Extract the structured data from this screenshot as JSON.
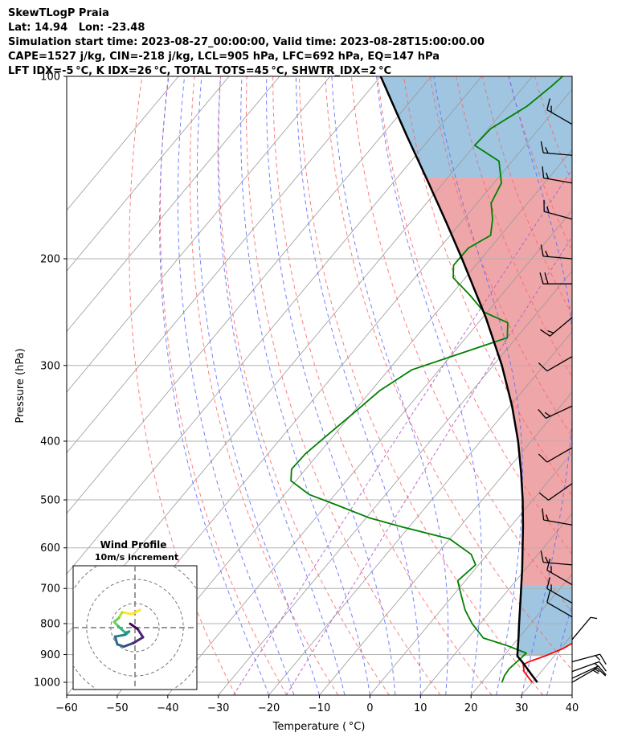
{
  "header": {
    "lines": [
      "SkewTLogP Praia",
      "Lat: 14.94   Lon: -23.48",
      "Simulation start time: 2023-08-27_00:00:00, Valid time: 2023-08-28T15:00:00.00",
      "CAPE=1527 j/kg, CIN=-218 j/kg, LCL=905 hPa, LFC=692 hPa, EQ=147 hPa",
      "LFT IDX=-5 °C, K IDX=26 °C, TOTAL TOTS=45 °C, SHWTR_IDX=2 °C"
    ]
  },
  "colors": {
    "temperature": "#ff0000",
    "dewpoint": "#008000",
    "parcel": "#000000",
    "cape_fill": "#e8888c",
    "cin_fill": "#7fb2d6",
    "dry_adiabat": "#ff6666",
    "moist_adiabat": "#5a6bff",
    "mixing_ratio": "#b35cc9",
    "isotherm": "#999999"
  },
  "chart_data": [
    {
      "type": "line",
      "subtype": "skew-t log-p",
      "xlabel": "Temperature ( °C)",
      "ylabel": "Pressure (hPa)",
      "xlim": [
        -60,
        40
      ],
      "ylim": [
        1050,
        100
      ],
      "y_scale": "log",
      "x_ticks": [
        -60,
        -50,
        -40,
        -30,
        -20,
        -10,
        0,
        10,
        20,
        30,
        40
      ],
      "x_tick_labels": [
        "−60",
        "−50",
        "−40",
        "−30",
        "−20",
        "−10",
        "0",
        "10",
        "20",
        "30",
        "40"
      ],
      "y_ticks": [
        1000,
        900,
        800,
        700,
        600,
        500,
        400,
        300,
        200,
        100
      ],
      "y_tick_labels": [
        "1000",
        "900",
        "800",
        "700",
        "600",
        "500",
        "400",
        "300",
        "200",
        "100"
      ],
      "grid": true,
      "skew_deg_per_decade": 100,
      "series": [
        {
          "key": "temperature",
          "points": [
            [
              1000,
              30.0
            ],
            [
              980,
              28.3
            ],
            [
              960,
              26.6
            ],
            [
              935,
              25.3
            ],
            [
              925,
              25.9
            ],
            [
              905,
              28.2
            ],
            [
              880,
              30.5
            ],
            [
              845,
              32.4
            ],
            [
              820,
              32.1
            ],
            [
              790,
              30.6
            ],
            [
              740,
              28.0
            ],
            [
              700,
              25.2
            ],
            [
              660,
              22.4
            ],
            [
              620,
              19.5
            ],
            [
              590,
              17.1
            ],
            [
              555,
              16.1
            ],
            [
              520,
              15.5
            ],
            [
              480,
              14.4
            ],
            [
              450,
              13.4
            ],
            [
              410,
              11.0
            ],
            [
              370,
              8.0
            ],
            [
              330,
              3.9
            ],
            [
              300,
              0.4
            ],
            [
              275,
              -2.2
            ],
            [
              255,
              -4.5
            ],
            [
              240,
              -6.8
            ],
            [
              220,
              -10.0
            ],
            [
              205,
              -13.0
            ],
            [
              190,
              -16.8
            ],
            [
              175,
              -22.0
            ],
            [
              160,
              -27.3
            ],
            [
              150,
              -31.0
            ],
            [
              138,
              -31.5
            ],
            [
              125,
              -35.8
            ],
            [
              112,
              -40.5
            ],
            [
              100,
              -44.5
            ]
          ]
        },
        {
          "key": "dewpoint",
          "points": [
            [
              1000,
              24.0
            ],
            [
              975,
              23.4
            ],
            [
              950,
              23.2
            ],
            [
              930,
              23.5
            ],
            [
              910,
              23.8
            ],
            [
              895,
              24.0
            ],
            [
              870,
              19.0
            ],
            [
              845,
              13.0
            ],
            [
              800,
              8.4
            ],
            [
              760,
              4.8
            ],
            [
              720,
              1.7
            ],
            [
              680,
              -1.5
            ],
            [
              640,
              -0.6
            ],
            [
              615,
              -3.2
            ],
            [
              580,
              -10.0
            ],
            [
              555,
              -21.0
            ],
            [
              535,
              -29.5
            ],
            [
              510,
              -37.9
            ],
            [
              490,
              -45.1
            ],
            [
              465,
              -51.0
            ],
            [
              445,
              -52.8
            ],
            [
              420,
              -52.6
            ],
            [
              390,
              -51.3
            ],
            [
              360,
              -49.8
            ],
            [
              330,
              -48.3
            ],
            [
              305,
              -45.4
            ],
            [
              288,
              -39.0
            ],
            [
              270,
              -31.8
            ],
            [
              255,
              -34.2
            ],
            [
              245,
              -40.6
            ],
            [
              230,
              -46.1
            ],
            [
              215,
              -52.4
            ],
            [
              205,
              -54.4
            ],
            [
              192,
              -54.3
            ],
            [
              183,
              -52.0
            ],
            [
              172,
              -54.3
            ],
            [
              162,
              -57.2
            ],
            [
              150,
              -58.5
            ],
            [
              138,
              -62.6
            ],
            [
              130,
              -70.0
            ],
            [
              122,
              -69.6
            ],
            [
              112,
              -66.1
            ],
            [
              104,
              -64.6
            ],
            [
              100,
              -64.0
            ]
          ]
        },
        {
          "key": "parcel",
          "points": [
            [
              1000,
              31.0
            ],
            [
              975,
              28.9
            ],
            [
              950,
              26.8
            ],
            [
              925,
              24.6
            ],
            [
              905,
              22.7
            ],
            [
              850,
              20.2
            ],
            [
              800,
              17.7
            ],
            [
              750,
              15.1
            ],
            [
              700,
              12.3
            ],
            [
              650,
              9.3
            ],
            [
              600,
              5.9
            ],
            [
              550,
              2.2
            ],
            [
              500,
              -2.0
            ],
            [
              450,
              -6.9
            ],
            [
              400,
              -12.6
            ],
            [
              350,
              -19.6
            ],
            [
              300,
              -28.3
            ],
            [
              250,
              -39.4
            ],
            [
              200,
              -53.8
            ],
            [
              175,
              -62.6
            ],
            [
              150,
              -72.9
            ],
            [
              125,
              -85.2
            ],
            [
              100,
              -100.0
            ]
          ]
        }
      ],
      "fills": [
        {
          "key": "cape",
          "p_bottom": 692,
          "p_top": 147
        },
        {
          "key": "cin",
          "p_bottom": 905,
          "p_top": 692
        },
        {
          "key": "cin",
          "p_bottom": 147,
          "p_top": 100
        }
      ],
      "background_lines": {
        "isotherms_c": [
          -140,
          -130,
          -120,
          -110,
          -100,
          -90,
          -80,
          -70,
          -60,
          -50,
          -40,
          -30,
          -20,
          -10,
          0,
          10,
          20,
          30,
          40
        ],
        "dry_adiabats_c": [
          -30,
          -20,
          -10,
          0,
          10,
          20,
          30,
          40,
          50,
          60,
          70,
          80,
          90,
          100,
          110,
          120
        ],
        "moist_adiabats_c": [
          -20,
          -15,
          -10,
          -5,
          0,
          5,
          10,
          15,
          20,
          25,
          30,
          35
        ],
        "mixing_ratio_gkg": [
          0.4,
          1
        ]
      },
      "wind_barbs": [
        {
          "p": 1000,
          "speed_kt": 15,
          "dir": 60
        },
        {
          "p": 985,
          "speed_kt": 15,
          "dir": 65
        },
        {
          "p": 960,
          "speed_kt": 15,
          "dir": 70
        },
        {
          "p": 925,
          "speed_kt": 15,
          "dir": 75
        },
        {
          "p": 850,
          "speed_kt": 5,
          "dir": 40
        },
        {
          "p": 780,
          "speed_kt": 10,
          "dir": 300
        },
        {
          "p": 740,
          "speed_kt": 15,
          "dir": 300
        },
        {
          "p": 690,
          "speed_kt": 15,
          "dir": 300
        },
        {
          "p": 640,
          "speed_kt": 15,
          "dir": 275
        },
        {
          "p": 550,
          "speed_kt": 15,
          "dir": 280
        },
        {
          "p": 470,
          "speed_kt": 10,
          "dir": 235
        },
        {
          "p": 410,
          "speed_kt": 10,
          "dir": 240
        },
        {
          "p": 350,
          "speed_kt": 15,
          "dir": 245
        },
        {
          "p": 290,
          "speed_kt": 10,
          "dir": 240
        },
        {
          "p": 250,
          "speed_kt": 15,
          "dir": 230
        },
        {
          "p": 220,
          "speed_kt": 20,
          "dir": 270
        },
        {
          "p": 200,
          "speed_kt": 15,
          "dir": 275
        },
        {
          "p": 172,
          "speed_kt": 15,
          "dir": 285
        },
        {
          "p": 150,
          "speed_kt": 15,
          "dir": 280
        },
        {
          "p": 135,
          "speed_kt": 15,
          "dir": 275
        },
        {
          "p": 120,
          "speed_kt": 15,
          "dir": 300
        }
      ]
    },
    {
      "type": "line",
      "subtype": "hodograph",
      "title": "Wind Profile",
      "subtitle": "10m/s increment",
      "ring_spacing_ms": 10,
      "rings": 3,
      "grid": true,
      "points_ms": [
        [
          1.5,
          5.5
        ],
        [
          -1.0,
          4.2
        ],
        [
          -4.0,
          4.8
        ],
        [
          -5.0,
          3.0
        ],
        [
          -6.5,
          1.8
        ],
        [
          -5.2,
          0.4
        ],
        [
          -3.0,
          -1.6
        ],
        [
          -1.8,
          -1.2
        ],
        [
          -3.0,
          -2.2
        ],
        [
          -6.2,
          -2.8
        ],
        [
          -5.5,
          -5.2
        ],
        [
          -3.5,
          -5.9
        ],
        [
          -0.5,
          -4.8
        ],
        [
          2.5,
          -3.0
        ],
        [
          0.8,
          -0.4
        ],
        [
          -1.5,
          1.2
        ]
      ]
    }
  ]
}
